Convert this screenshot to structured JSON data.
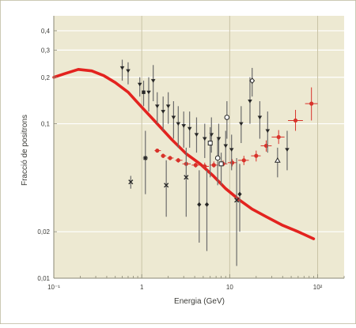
{
  "colors": {
    "frame": "#bbb79c",
    "background": "#ede9d2",
    "grid": "#ffffff",
    "axis": "#8a8875",
    "text": "#3c3c38",
    "model_curve": "#e3231f",
    "red_data": "#d8322a",
    "black_data": "#262626",
    "error_bar": "#6b6b6b"
  },
  "chart_data": {
    "type": "scatter",
    "xlabel": "Energia (GeV)",
    "ylabel": "Fracció de positrons",
    "xscale": "log",
    "yscale": "log",
    "xlim": [
      0.1,
      200
    ],
    "ylim": [
      0.01,
      0.5
    ],
    "grid": true,
    "x_ticks": [
      {
        "value": 0.1,
        "label": "10⁻¹"
      },
      {
        "value": 1,
        "label": "1"
      },
      {
        "value": 10,
        "label": "10"
      },
      {
        "value": 100,
        "label": "10²"
      }
    ],
    "y_ticks": [
      {
        "value": 0.01,
        "label": "0,01"
      },
      {
        "value": 0.02,
        "label": "0,02"
      },
      {
        "value": 0.1,
        "label": "0,1"
      },
      {
        "value": 0.2,
        "label": "0,2"
      },
      {
        "value": 0.3,
        "label": "0,3"
      },
      {
        "value": 0.4,
        "label": "0,4"
      }
    ],
    "series": [
      {
        "kind": "curve",
        "x": [
          0.1,
          0.13,
          0.19,
          0.27,
          0.37,
          0.5,
          0.7,
          1.0,
          1.5,
          2.2,
          3.2,
          4.6,
          6.5,
          9.0,
          13,
          18,
          26,
          40,
          60,
          90
        ],
        "y": [
          0.2,
          0.21,
          0.225,
          0.22,
          0.205,
          0.185,
          0.16,
          0.128,
          0.1,
          0.079,
          0.064,
          0.055,
          0.046,
          0.038,
          0.032,
          0.028,
          0.025,
          0.022,
          0.02,
          0.018
        ]
      },
      {
        "kind": "red-points",
        "points": [
          {
            "x": 1.5,
            "y": 0.067,
            "ylo": 0.065,
            "yhi": 0.069,
            "xlo": 1.4,
            "xhi": 1.65
          },
          {
            "x": 1.75,
            "y": 0.062,
            "ylo": 0.06,
            "yhi": 0.064,
            "xlo": 1.65,
            "xhi": 1.9
          },
          {
            "x": 2.1,
            "y": 0.06,
            "ylo": 0.058,
            "yhi": 0.062,
            "xlo": 1.95,
            "xhi": 2.3
          },
          {
            "x": 2.6,
            "y": 0.058,
            "ylo": 0.056,
            "yhi": 0.06,
            "xlo": 2.4,
            "xhi": 2.9
          },
          {
            "x": 3.2,
            "y": 0.055,
            "ylo": 0.053,
            "yhi": 0.057,
            "xlo": 2.9,
            "xhi": 3.6
          },
          {
            "x": 4.1,
            "y": 0.054,
            "ylo": 0.052,
            "yhi": 0.056,
            "xlo": 3.7,
            "xhi": 4.6
          },
          {
            "x": 5.2,
            "y": 0.053,
            "ylo": 0.051,
            "yhi": 0.056,
            "xlo": 4.7,
            "xhi": 5.8
          },
          {
            "x": 6.6,
            "y": 0.054,
            "ylo": 0.052,
            "yhi": 0.057,
            "xlo": 5.9,
            "xhi": 7.4
          },
          {
            "x": 8.4,
            "y": 0.055,
            "ylo": 0.053,
            "yhi": 0.058,
            "xlo": 7.5,
            "xhi": 9.4
          },
          {
            "x": 10.7,
            "y": 0.056,
            "ylo": 0.053,
            "yhi": 0.059,
            "xlo": 9.5,
            "xhi": 12
          },
          {
            "x": 14.5,
            "y": 0.058,
            "ylo": 0.054,
            "yhi": 0.062,
            "xlo": 12.5,
            "xhi": 16.5
          },
          {
            "x": 20,
            "y": 0.062,
            "ylo": 0.057,
            "yhi": 0.067,
            "xlo": 17.5,
            "xhi": 22.5
          },
          {
            "x": 26,
            "y": 0.072,
            "ylo": 0.066,
            "yhi": 0.078,
            "xlo": 22.5,
            "xhi": 30
          },
          {
            "x": 36,
            "y": 0.082,
            "ylo": 0.074,
            "yhi": 0.091,
            "xlo": 30,
            "xhi": 42
          },
          {
            "x": 56,
            "y": 0.105,
            "ylo": 0.09,
            "yhi": 0.123,
            "xlo": 46,
            "xhi": 68
          },
          {
            "x": 85,
            "y": 0.135,
            "ylo": 0.105,
            "yhi": 0.172,
            "xlo": 72,
            "xhi": 100
          }
        ]
      },
      {
        "kind": "black-points",
        "points": [
          {
            "x": 0.6,
            "y": 0.23,
            "ylo": 0.19,
            "yhi": 0.26,
            "m": "tri-down"
          },
          {
            "x": 0.7,
            "y": 0.22,
            "ylo": 0.18,
            "yhi": 0.25,
            "m": "tri-down"
          },
          {
            "x": 0.95,
            "y": 0.18,
            "ylo": 0.15,
            "yhi": 0.2,
            "m": "tri-down"
          },
          {
            "x": 1.05,
            "y": 0.16,
            "ylo": 0.13,
            "yhi": 0.19,
            "m": "square"
          },
          {
            "x": 1.2,
            "y": 0.16,
            "ylo": 0.12,
            "yhi": 0.2,
            "m": "tri-down"
          },
          {
            "x": 1.35,
            "y": 0.19,
            "ylo": 0.14,
            "yhi": 0.24,
            "m": "tri-down"
          },
          {
            "x": 1.5,
            "y": 0.13,
            "ylo": 0.1,
            "yhi": 0.16,
            "m": "tri-down"
          },
          {
            "x": 1.75,
            "y": 0.12,
            "ylo": 0.09,
            "yhi": 0.15,
            "m": "tri-down"
          },
          {
            "x": 2.0,
            "y": 0.13,
            "ylo": 0.1,
            "yhi": 0.16,
            "m": "tri-down"
          },
          {
            "x": 2.3,
            "y": 0.11,
            "ylo": 0.08,
            "yhi": 0.14,
            "m": "tri-down"
          },
          {
            "x": 2.6,
            "y": 0.1,
            "ylo": 0.07,
            "yhi": 0.13,
            "m": "tri-down"
          },
          {
            "x": 3.0,
            "y": 0.097,
            "ylo": 0.07,
            "yhi": 0.12,
            "m": "tri-down"
          },
          {
            "x": 3.5,
            "y": 0.093,
            "ylo": 0.07,
            "yhi": 0.12,
            "m": "tri-down"
          },
          {
            "x": 4.2,
            "y": 0.085,
            "ylo": 0.065,
            "yhi": 0.11,
            "m": "tri-down"
          },
          {
            "x": 5.2,
            "y": 0.08,
            "ylo": 0.06,
            "yhi": 0.1,
            "m": "tri-down"
          },
          {
            "x": 6.2,
            "y": 0.085,
            "ylo": 0.065,
            "yhi": 0.11,
            "m": "tri-down"
          },
          {
            "x": 7.5,
            "y": 0.08,
            "ylo": 0.06,
            "yhi": 0.1,
            "m": "tri-down"
          },
          {
            "x": 9.0,
            "y": 0.072,
            "ylo": 0.055,
            "yhi": 0.09,
            "m": "tri-down"
          },
          {
            "x": 10.5,
            "y": 0.068,
            "ylo": 0.05,
            "yhi": 0.085,
            "m": "tri-down"
          },
          {
            "x": 13.5,
            "y": 0.1,
            "ylo": 0.075,
            "yhi": 0.13,
            "m": "tri-down"
          },
          {
            "x": 17,
            "y": 0.14,
            "ylo": 0.1,
            "yhi": 0.2,
            "m": "tri-down"
          },
          {
            "x": 22,
            "y": 0.11,
            "ylo": 0.08,
            "yhi": 0.14,
            "m": "tri-down"
          },
          {
            "x": 27,
            "y": 0.09,
            "ylo": 0.065,
            "yhi": 0.12,
            "m": "tri-down"
          },
          {
            "x": 45,
            "y": 0.068,
            "ylo": 0.05,
            "yhi": 0.09,
            "m": "tri-down"
          },
          {
            "x": 1.1,
            "y": 0.06,
            "ylo": 0.035,
            "yhi": 0.09,
            "m": "star"
          },
          {
            "x": 0.75,
            "y": 0.042,
            "ylo": 0.038,
            "yhi": 0.046,
            "m": "x"
          },
          {
            "x": 1.9,
            "y": 0.04,
            "ylo": 0.025,
            "yhi": 0.058,
            "m": "x"
          },
          {
            "x": 3.2,
            "y": 0.045,
            "ylo": 0.025,
            "yhi": 0.07,
            "m": "x"
          },
          {
            "x": 4.5,
            "y": 0.03,
            "ylo": 0.017,
            "yhi": 0.05,
            "m": "diamond"
          },
          {
            "x": 5.5,
            "y": 0.03,
            "ylo": 0.015,
            "yhi": 0.05,
            "m": "diamond"
          },
          {
            "x": 6,
            "y": 0.075,
            "ylo": 0.045,
            "yhi": 0.095,
            "m": "square-open"
          },
          {
            "x": 7.3,
            "y": 0.06,
            "ylo": 0.04,
            "yhi": 0.08,
            "m": "circle-open"
          },
          {
            "x": 8,
            "y": 0.055,
            "ylo": 0.04,
            "yhi": 0.065,
            "m": "square-open"
          },
          {
            "x": 9.3,
            "y": 0.11,
            "ylo": 0.08,
            "yhi": 0.14,
            "m": "circle-open"
          },
          {
            "x": 12,
            "y": 0.032,
            "ylo": 0.012,
            "yhi": 0.06,
            "m": "x"
          },
          {
            "x": 13,
            "y": 0.035,
            "ylo": 0.02,
            "yhi": 0.055,
            "m": "diamond"
          },
          {
            "x": 18,
            "y": 0.19,
            "ylo": 0.15,
            "yhi": 0.23,
            "m": "diamond-open"
          },
          {
            "x": 35,
            "y": 0.058,
            "ylo": 0.045,
            "yhi": 0.07,
            "m": "tri-up-open"
          }
        ]
      }
    ]
  }
}
